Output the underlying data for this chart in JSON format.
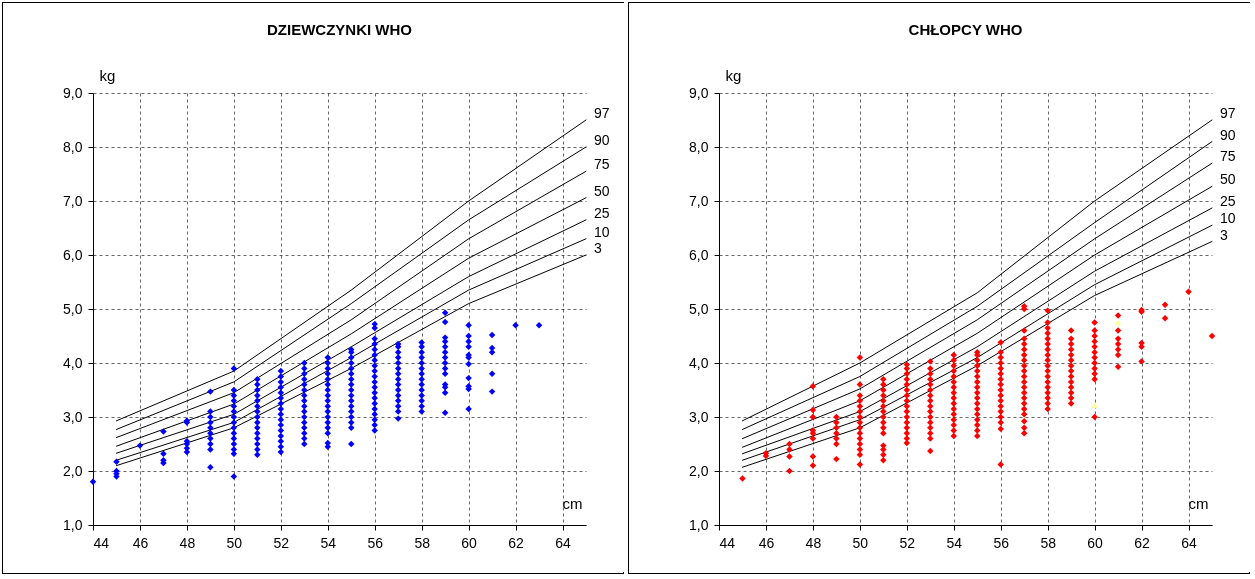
{
  "chart_data": [
    {
      "type": "line",
      "title": "DZIEWCZYNKI WHO",
      "xlabel": "cm",
      "ylabel": "kg",
      "xlim": [
        44,
        65
      ],
      "xticks": [
        44,
        46,
        48,
        50,
        52,
        54,
        56,
        58,
        60,
        62,
        64
      ],
      "ylim": [
        1,
        9
      ],
      "yticks": [
        {
          "value": 1,
          "label": "1,0"
        },
        {
          "value": 2,
          "label": "2,0"
        },
        {
          "value": 3,
          "label": "3,0"
        },
        {
          "value": 4,
          "label": "4,0"
        },
        {
          "value": 5,
          "label": "5,0"
        },
        {
          "value": 6,
          "label": "6,0"
        },
        {
          "value": 7,
          "label": "7,0"
        },
        {
          "value": 8,
          "label": "8,0"
        },
        {
          "value": 9,
          "label": "9,0"
        }
      ],
      "grid": true,
      "line_style": "solid",
      "series": [
        {
          "name": "97",
          "color": "#000000",
          "x": [
            45,
            50,
            55,
            60,
            65
          ],
          "values": [
            2.93,
            3.85,
            5.35,
            7.0,
            8.5
          ]
        },
        {
          "name": "90",
          "color": "#000000",
          "x": [
            45,
            50,
            55,
            60,
            65
          ],
          "values": [
            2.77,
            3.65,
            5.1,
            6.65,
            8.0
          ]
        },
        {
          "name": "75",
          "color": "#000000",
          "x": [
            45,
            50,
            55,
            60,
            65
          ],
          "values": [
            2.62,
            3.45,
            4.8,
            6.3,
            7.55
          ]
        },
        {
          "name": "50",
          "color": "#000000",
          "x": [
            45,
            50,
            55,
            60,
            65
          ],
          "values": [
            2.46,
            3.24,
            4.54,
            5.94,
            7.06
          ]
        },
        {
          "name": "25",
          "color": "#000000",
          "x": [
            45,
            50,
            55,
            60,
            65
          ],
          "values": [
            2.33,
            3.05,
            4.3,
            5.6,
            6.65
          ]
        },
        {
          "name": "10",
          "color": "#000000",
          "x": [
            45,
            50,
            55,
            60,
            65
          ],
          "values": [
            2.2,
            2.9,
            4.1,
            5.35,
            6.3
          ]
        },
        {
          "name": "3",
          "color": "#000000",
          "x": [
            45,
            50,
            55,
            60,
            65
          ],
          "values": [
            2.1,
            2.8,
            3.9,
            5.1,
            6.0
          ]
        },
        {
          "type": "scatter",
          "marker": "diamond",
          "color": "#0000ff",
          "x": [
            44,
            45,
            45,
            45,
            45,
            46,
            47,
            47,
            47,
            47,
            48,
            48,
            48,
            48,
            48,
            48,
            49,
            49,
            49,
            49,
            49,
            49,
            49,
            49,
            49,
            49,
            50,
            50,
            50,
            50,
            50,
            50,
            50,
            50,
            50,
            50,
            50,
            50,
            50,
            50,
            50,
            51,
            51,
            51,
            51,
            51,
            51,
            51,
            51,
            51,
            51,
            51,
            51,
            51,
            51,
            51,
            52,
            52,
            52,
            52,
            52,
            52,
            52,
            52,
            52,
            52,
            52,
            52,
            52,
            52,
            52,
            52,
            53,
            53,
            53,
            53,
            53,
            53,
            53,
            53,
            53,
            53,
            53,
            53,
            53,
            53,
            53,
            53,
            54,
            54,
            54,
            54,
            54,
            54,
            54,
            54,
            54,
            54,
            54,
            54,
            54,
            54,
            54,
            54,
            54,
            55,
            55,
            55,
            55,
            55,
            55,
            55,
            55,
            55,
            55,
            55,
            55,
            55,
            55,
            55,
            55,
            55,
            56,
            56,
            56,
            56,
            56,
            56,
            56,
            56,
            56,
            56,
            56,
            56,
            56,
            56,
            56,
            56,
            56,
            56,
            56,
            56,
            57,
            57,
            57,
            57,
            57,
            57,
            57,
            57,
            57,
            57,
            57,
            57,
            57,
            57,
            57,
            58,
            58,
            58,
            58,
            58,
            58,
            58,
            58,
            58,
            58,
            58,
            58,
            58,
            58,
            59,
            59,
            59,
            59,
            59,
            59,
            59,
            59,
            59,
            59,
            59,
            59,
            59,
            59,
            60,
            60,
            60,
            60,
            60,
            60,
            60,
            60,
            60,
            60,
            60,
            61,
            61,
            61,
            61,
            61,
            62,
            63
          ],
          "values": [
            1.8,
            1.9,
            1.95,
            2.0,
            2.17,
            2.47,
            2.15,
            2.2,
            2.32,
            2.73,
            2.35,
            2.42,
            2.5,
            2.55,
            2.9,
            2.93,
            2.07,
            2.4,
            2.5,
            2.6,
            2.7,
            2.8,
            2.9,
            3.0,
            3.1,
            3.47,
            1.9,
            2.32,
            2.4,
            2.5,
            2.6,
            2.7,
            2.8,
            2.9,
            3.0,
            3.1,
            3.2,
            3.3,
            3.4,
            3.5,
            3.9,
            2.3,
            2.4,
            2.5,
            2.6,
            2.7,
            2.8,
            2.9,
            3.0,
            3.1,
            3.2,
            3.3,
            3.4,
            3.5,
            3.6,
            3.7,
            2.35,
            2.45,
            2.55,
            2.65,
            2.75,
            2.85,
            2.95,
            3.05,
            3.15,
            3.25,
            3.35,
            3.45,
            3.55,
            3.65,
            3.75,
            3.85,
            2.5,
            2.6,
            2.7,
            2.8,
            2.9,
            3.0,
            3.1,
            3.2,
            3.3,
            3.4,
            3.5,
            3.6,
            3.7,
            3.8,
            3.9,
            4.0,
            2.45,
            2.52,
            2.7,
            2.8,
            2.9,
            3.0,
            3.1,
            3.2,
            3.3,
            3.4,
            3.5,
            3.6,
            3.7,
            3.8,
            3.9,
            4.0,
            4.1,
            2.5,
            2.8,
            2.9,
            3.0,
            3.1,
            3.2,
            3.3,
            3.4,
            3.5,
            3.6,
            3.7,
            3.8,
            3.9,
            4.0,
            4.1,
            4.2,
            4.25,
            2.75,
            2.85,
            2.95,
            3.05,
            3.15,
            3.25,
            3.35,
            3.45,
            3.55,
            3.65,
            3.75,
            3.85,
            3.95,
            4.05,
            4.15,
            4.25,
            4.35,
            4.45,
            4.65,
            4.72,
            2.97,
            3.1,
            3.2,
            3.3,
            3.4,
            3.5,
            3.6,
            3.7,
            3.8,
            3.9,
            4.0,
            4.1,
            4.2,
            4.3,
            4.35,
            3.1,
            3.2,
            3.3,
            3.4,
            3.5,
            3.6,
            3.7,
            3.8,
            3.9,
            4.0,
            4.1,
            4.2,
            4.3,
            4.38,
            3.08,
            3.45,
            3.55,
            3.6,
            3.8,
            3.9,
            4.0,
            4.1,
            4.2,
            4.3,
            4.4,
            4.47,
            4.76,
            4.93,
            3.15,
            3.52,
            3.57,
            3.72,
            3.98,
            4.1,
            4.15,
            4.3,
            4.4,
            4.5,
            4.7,
            3.47,
            3.8,
            4.2,
            4.28,
            4.52,
            4.7,
            4.7
          ]
        }
      ]
    },
    {
      "type": "line",
      "title": "CHŁOPCY WHO",
      "xlabel": "cm",
      "ylabel": "kg",
      "xlim": [
        44,
        65
      ],
      "xticks": [
        44,
        46,
        48,
        50,
        52,
        54,
        56,
        58,
        60,
        62,
        64
      ],
      "ylim": [
        1,
        9
      ],
      "yticks": [
        {
          "value": 1,
          "label": "1,0"
        },
        {
          "value": 2,
          "label": "2,0"
        },
        {
          "value": 3,
          "label": "3,0"
        },
        {
          "value": 4,
          "label": "4,0"
        },
        {
          "value": 5,
          "label": "5,0"
        },
        {
          "value": 6,
          "label": "6,0"
        },
        {
          "value": 7,
          "label": "7,0"
        },
        {
          "value": 8,
          "label": "8,0"
        },
        {
          "value": 9,
          "label": "9,0"
        }
      ],
      "grid": true,
      "line_style": "solid",
      "series": [
        {
          "name": "97",
          "color": "#000000",
          "x": [
            45,
            50,
            55,
            60,
            65
          ],
          "values": [
            2.93,
            4.0,
            5.3,
            7.0,
            8.5
          ]
        },
        {
          "name": "90",
          "color": "#000000",
          "x": [
            45,
            50,
            55,
            60,
            65
          ],
          "values": [
            2.77,
            3.75,
            5.05,
            6.6,
            8.1
          ]
        },
        {
          "name": "75",
          "color": "#000000",
          "x": [
            45,
            50,
            55,
            60,
            65
          ],
          "values": [
            2.6,
            3.52,
            4.8,
            6.3,
            7.7
          ]
        },
        {
          "name": "50",
          "color": "#000000",
          "x": [
            45,
            50,
            55,
            60,
            65
          ],
          "values": [
            2.44,
            3.3,
            4.55,
            6.0,
            7.27
          ]
        },
        {
          "name": "25",
          "color": "#000000",
          "x": [
            45,
            50,
            55,
            60,
            65
          ],
          "values": [
            2.32,
            3.1,
            4.3,
            5.7,
            6.87
          ]
        },
        {
          "name": "10",
          "color": "#000000",
          "x": [
            45,
            50,
            55,
            60,
            65
          ],
          "values": [
            2.2,
            2.95,
            4.1,
            5.45,
            6.55
          ]
        },
        {
          "name": "3",
          "color": "#000000",
          "x": [
            45,
            50,
            55,
            60,
            65
          ],
          "values": [
            2.07,
            2.8,
            3.95,
            5.25,
            6.25
          ]
        },
        {
          "type": "scatter",
          "marker": "diamond",
          "color": "#ff0000",
          "x": [
            45,
            46,
            46,
            47,
            47,
            47,
            47,
            48,
            48,
            48,
            48,
            48,
            48,
            48,
            48,
            49,
            49,
            49,
            49,
            49,
            49,
            49,
            50,
            50,
            50,
            50,
            50,
            50,
            50,
            50,
            50,
            50,
            50,
            50,
            50,
            50,
            50,
            51,
            51,
            51,
            51,
            51,
            51,
            51,
            51,
            51,
            51,
            51,
            51,
            51,
            51,
            51,
            52,
            52,
            52,
            52,
            52,
            52,
            52,
            52,
            52,
            52,
            52,
            52,
            52,
            52,
            52,
            52,
            53,
            53,
            53,
            53,
            53,
            53,
            53,
            53,
            53,
            53,
            53,
            53,
            53,
            53,
            53,
            53,
            54,
            54,
            54,
            54,
            54,
            54,
            54,
            54,
            54,
            54,
            54,
            54,
            54,
            54,
            54,
            54,
            55,
            55,
            55,
            55,
            55,
            55,
            55,
            55,
            55,
            55,
            55,
            55,
            55,
            55,
            55,
            55,
            55,
            56,
            56,
            56,
            56,
            56,
            56,
            56,
            56,
            56,
            56,
            56,
            56,
            56,
            56,
            56,
            56,
            56,
            57,
            57,
            57,
            57,
            57,
            57,
            57,
            57,
            57,
            57,
            57,
            57,
            57,
            57,
            57,
            57,
            57,
            57,
            57,
            57,
            57,
            58,
            58,
            58,
            58,
            58,
            58,
            58,
            58,
            58,
            58,
            58,
            58,
            58,
            58,
            58,
            58,
            58,
            58,
            59,
            59,
            59,
            59,
            59,
            59,
            59,
            59,
            59,
            59,
            59,
            59,
            59,
            59,
            60,
            60,
            60,
            60,
            60,
            60,
            60,
            60,
            60,
            60,
            60,
            60,
            61,
            61,
            61,
            61,
            61,
            61,
            61,
            62,
            62,
            62,
            62,
            62,
            63,
            63,
            64,
            65
          ],
          "values": [
            1.86,
            2.28,
            2.33,
            2.0,
            2.27,
            2.4,
            2.5,
            2.1,
            2.27,
            2.6,
            2.7,
            2.75,
            3.0,
            3.13,
            3.57,
            2.22,
            2.5,
            2.6,
            2.7,
            2.8,
            2.9,
            3.0,
            2.12,
            2.3,
            2.4,
            2.5,
            2.6,
            2.7,
            2.8,
            2.9,
            3.0,
            3.1,
            3.2,
            3.3,
            3.4,
            3.6,
            4.1,
            2.2,
            2.3,
            2.4,
            2.47,
            2.7,
            2.8,
            2.9,
            3.0,
            3.1,
            3.2,
            3.3,
            3.4,
            3.5,
            3.6,
            3.7,
            2.52,
            2.6,
            2.7,
            2.8,
            2.9,
            3.0,
            3.1,
            3.2,
            3.3,
            3.4,
            3.5,
            3.6,
            3.7,
            3.8,
            3.9,
            3.97,
            2.37,
            2.6,
            2.7,
            2.8,
            2.9,
            3.0,
            3.1,
            3.2,
            3.3,
            3.4,
            3.5,
            3.6,
            3.7,
            3.8,
            3.9,
            4.03,
            2.65,
            2.75,
            2.85,
            2.95,
            3.05,
            3.15,
            3.25,
            3.35,
            3.45,
            3.55,
            3.65,
            3.75,
            3.85,
            3.95,
            4.05,
            4.15,
            2.65,
            2.75,
            2.85,
            2.95,
            3.05,
            3.15,
            3.25,
            3.35,
            3.45,
            3.55,
            3.65,
            3.75,
            3.85,
            3.95,
            4.05,
            4.15,
            4.2,
            2.12,
            2.78,
            2.9,
            3.0,
            3.1,
            3.2,
            3.3,
            3.4,
            3.5,
            3.6,
            3.7,
            3.8,
            3.9,
            4.0,
            4.1,
            4.2,
            4.38,
            2.7,
            2.8,
            2.92,
            3.05,
            3.15,
            3.25,
            3.35,
            3.45,
            3.55,
            3.65,
            3.75,
            3.85,
            3.95,
            4.05,
            4.15,
            4.25,
            4.35,
            4.45,
            4.6,
            5.0,
            5.05,
            3.15,
            3.25,
            3.35,
            3.45,
            3.55,
            3.65,
            3.75,
            3.85,
            3.95,
            4.05,
            4.15,
            4.25,
            4.35,
            4.45,
            4.55,
            4.65,
            4.75,
            4.97,
            3.25,
            3.35,
            3.45,
            3.55,
            3.65,
            3.75,
            3.85,
            3.95,
            4.05,
            4.15,
            4.25,
            4.35,
            4.45,
            4.6,
            3.0,
            3.7,
            3.8,
            3.9,
            4.0,
            4.1,
            4.2,
            4.3,
            4.4,
            4.5,
            4.6,
            4.75,
            3.93,
            4.15,
            4.25,
            4.35,
            4.45,
            4.6,
            4.88,
            4.03,
            4.3,
            4.37,
            4.95,
            4.98,
            4.83,
            5.08,
            5.32,
            4.5
          ]
        },
        {
          "type": "scatter",
          "marker": "triangle",
          "color": "#ffff99",
          "x": [
            60,
            61
          ],
          "values": [
            3.22,
            4.75
          ]
        }
      ]
    }
  ]
}
